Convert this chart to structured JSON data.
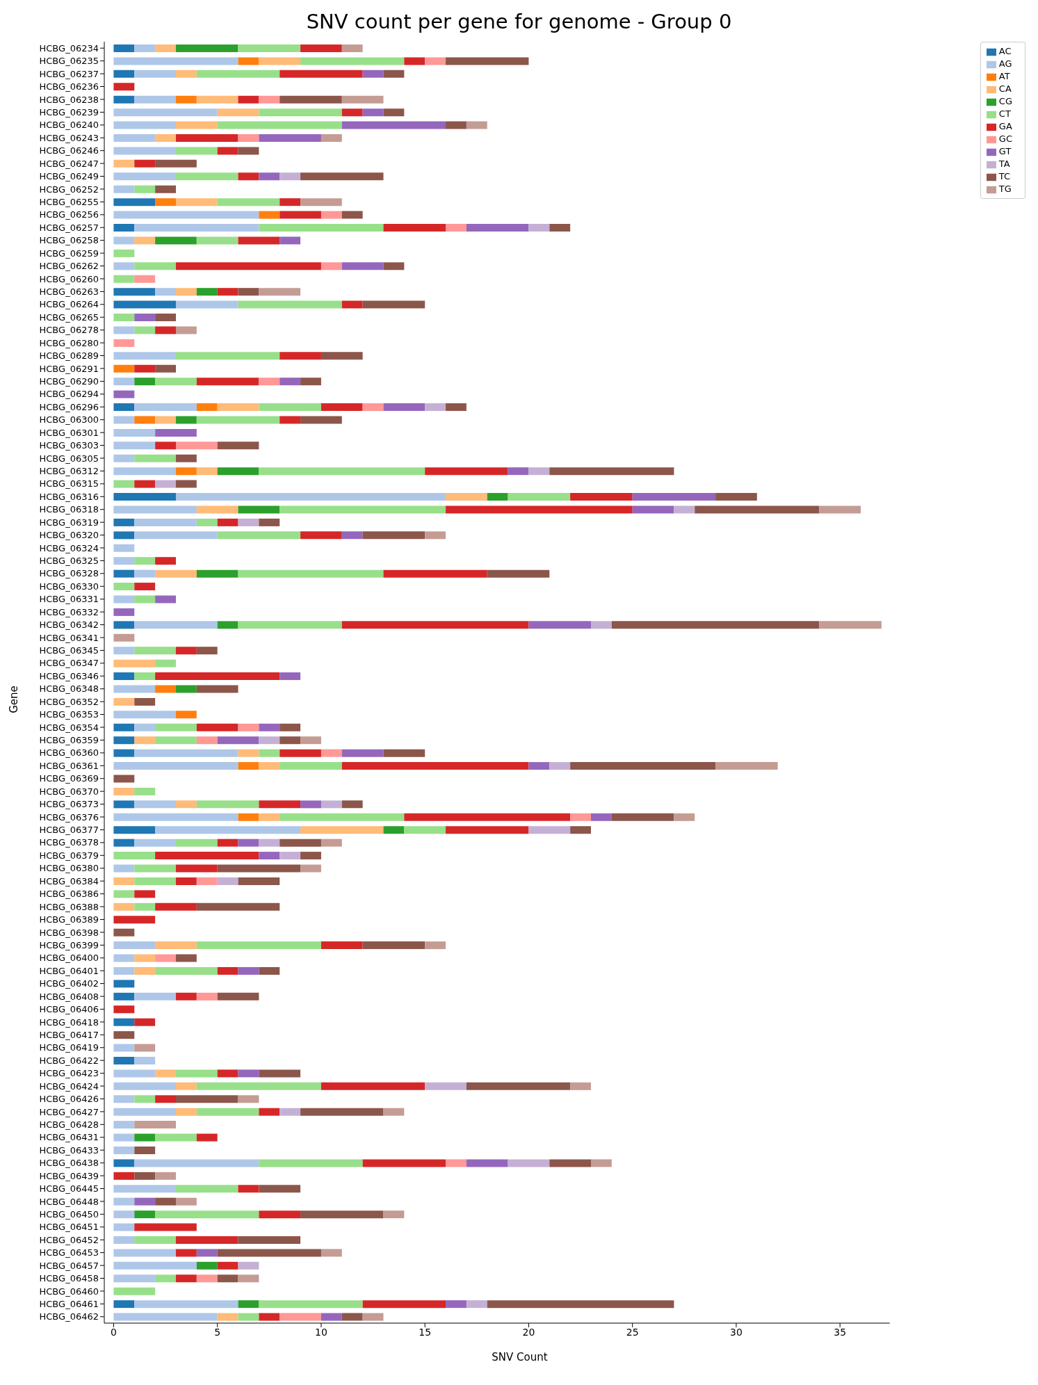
{
  "chart_data": {
    "type": "bar",
    "orientation": "horizontal",
    "stacked": true,
    "title": "SNV count per gene for genome - Group 0",
    "xlabel": "SNV Count",
    "ylabel": "Gene",
    "legend": "top right",
    "grid": false,
    "xlim": [
      -0.45,
      37.4
    ],
    "xticks": [
      0,
      5,
      10,
      15,
      20,
      25,
      30,
      35
    ],
    "categories": [
      "HCBG_06234",
      "HCBG_06235",
      "HCBG_06237",
      "HCBG_06236",
      "HCBG_06238",
      "HCBG_06239",
      "HCBG_06240",
      "HCBG_06243",
      "HCBG_06246",
      "HCBG_06247",
      "HCBG_06249",
      "HCBG_06252",
      "HCBG_06255",
      "HCBG_06256",
      "HCBG_06257",
      "HCBG_06258",
      "HCBG_06259",
      "HCBG_06262",
      "HCBG_06260",
      "HCBG_06263",
      "HCBG_06264",
      "HCBG_06265",
      "HCBG_06278",
      "HCBG_06280",
      "HCBG_06289",
      "HCBG_06291",
      "HCBG_06290",
      "HCBG_06294",
      "HCBG_06296",
      "HCBG_06300",
      "HCBG_06301",
      "HCBG_06303",
      "HCBG_06305",
      "HCBG_06312",
      "HCBG_06315",
      "HCBG_06316",
      "HCBG_06318",
      "HCBG_06319",
      "HCBG_06320",
      "HCBG_06324",
      "HCBG_06325",
      "HCBG_06328",
      "HCBG_06330",
      "HCBG_06331",
      "HCBG_06332",
      "HCBG_06342",
      "HCBG_06341",
      "HCBG_06345",
      "HCBG_06347",
      "HCBG_06346",
      "HCBG_06348",
      "HCBG_06352",
      "HCBG_06353",
      "HCBG_06354",
      "HCBG_06359",
      "HCBG_06360",
      "HCBG_06361",
      "HCBG_06369",
      "HCBG_06370",
      "HCBG_06373",
      "HCBG_06376",
      "HCBG_06377",
      "HCBG_06378",
      "HCBG_06379",
      "HCBG_06380",
      "HCBG_06384",
      "HCBG_06386",
      "HCBG_06388",
      "HCBG_06389",
      "HCBG_06398",
      "HCBG_06399",
      "HCBG_06400",
      "HCBG_06401",
      "HCBG_06402",
      "HCBG_06408",
      "HCBG_06406",
      "HCBG_06418",
      "HCBG_06417",
      "HCBG_06419",
      "HCBG_06422",
      "HCBG_06423",
      "HCBG_06424",
      "HCBG_06426",
      "HCBG_06427",
      "HCBG_06428",
      "HCBG_06431",
      "HCBG_06433",
      "HCBG_06438",
      "HCBG_06439",
      "HCBG_06445",
      "HCBG_06448",
      "HCBG_06450",
      "HCBG_06451",
      "HCBG_06452",
      "HCBG_06453",
      "HCBG_06457",
      "HCBG_06458",
      "HCBG_06460",
      "HCBG_06461",
      "HCBG_06462"
    ],
    "series": [
      {
        "name": "AC",
        "color": "#1f77b4",
        "values": [
          1,
          0,
          1,
          0,
          1,
          0,
          0,
          0,
          0,
          0,
          0,
          0,
          2,
          0,
          1,
          0,
          0,
          0,
          0,
          2,
          3,
          0,
          0,
          0,
          0,
          0,
          0,
          0,
          1,
          0,
          0,
          0,
          0,
          0,
          0,
          3,
          0,
          1,
          1,
          0,
          0,
          1,
          0,
          0,
          0,
          1,
          0,
          0,
          0,
          1,
          0,
          0,
          0,
          1,
          1,
          1,
          0,
          0,
          0,
          1,
          0,
          2,
          1,
          0,
          0,
          0,
          0,
          0,
          0,
          0,
          0,
          0,
          0,
          1,
          1,
          0,
          1,
          0,
          0,
          1,
          0,
          0,
          0,
          0,
          0,
          0,
          0,
          1,
          0,
          0,
          0,
          0,
          0,
          0,
          0,
          0,
          0,
          0,
          1,
          0
        ]
      },
      {
        "name": "AG",
        "color": "#aec7e8",
        "values": [
          1,
          6,
          2,
          0,
          2,
          5,
          3,
          2,
          3,
          0,
          3,
          1,
          0,
          7,
          6,
          1,
          0,
          1,
          0,
          1,
          3,
          0,
          1,
          0,
          3,
          0,
          1,
          0,
          3,
          1,
          2,
          2,
          1,
          3,
          0,
          13,
          4,
          3,
          4,
          1,
          1,
          1,
          0,
          1,
          0,
          4,
          0,
          1,
          0,
          0,
          2,
          0,
          3,
          1,
          0,
          5,
          6,
          0,
          0,
          2,
          6,
          7,
          2,
          0,
          1,
          0,
          0,
          0,
          0,
          0,
          2,
          1,
          1,
          0,
          2,
          0,
          0,
          0,
          1,
          1,
          2,
          3,
          1,
          3,
          1,
          1,
          1,
          6,
          0,
          3,
          1,
          1,
          1,
          1,
          3,
          4,
          2,
          0,
          5,
          5
        ]
      },
      {
        "name": "AT",
        "color": "#ff7f0e",
        "values": [
          0,
          1,
          0,
          0,
          1,
          0,
          0,
          0,
          0,
          0,
          0,
          0,
          1,
          1,
          0,
          0,
          0,
          0,
          0,
          0,
          0,
          0,
          0,
          0,
          0,
          1,
          0,
          0,
          1,
          1,
          0,
          0,
          0,
          1,
          0,
          0,
          0,
          0,
          0,
          0,
          0,
          0,
          0,
          0,
          0,
          0,
          0,
          0,
          0,
          0,
          1,
          0,
          1,
          0,
          0,
          0,
          1,
          0,
          0,
          0,
          1,
          0,
          0,
          0,
          0,
          0,
          0,
          0,
          0,
          0,
          0,
          0,
          0,
          0,
          0,
          0,
          0,
          0,
          0,
          0,
          0,
          0,
          0,
          0,
          0,
          0,
          0,
          0,
          0,
          0,
          0,
          0,
          0,
          0,
          0,
          0,
          0,
          0,
          0,
          0
        ]
      },
      {
        "name": "CA",
        "color": "#ffbb78",
        "values": [
          1,
          2,
          1,
          0,
          2,
          2,
          2,
          1,
          0,
          1,
          0,
          0,
          2,
          0,
          0,
          1,
          0,
          0,
          0,
          1,
          0,
          0,
          0,
          0,
          0,
          0,
          0,
          0,
          2,
          1,
          0,
          0,
          0,
          1,
          0,
          2,
          2,
          0,
          0,
          0,
          0,
          2,
          0,
          0,
          0,
          0,
          0,
          0,
          2,
          0,
          0,
          1,
          0,
          0,
          1,
          1,
          1,
          0,
          1,
          1,
          1,
          4,
          0,
          0,
          0,
          1,
          0,
          1,
          0,
          0,
          2,
          1,
          1,
          0,
          0,
          0,
          0,
          0,
          0,
          0,
          1,
          1,
          0,
          1,
          0,
          0,
          0,
          0,
          0,
          0,
          0,
          0,
          0,
          0,
          0,
          0,
          0,
          0,
          0,
          1
        ]
      },
      {
        "name": "CG",
        "color": "#2ca02c",
        "values": [
          3,
          0,
          0,
          0,
          0,
          0,
          0,
          0,
          0,
          0,
          0,
          0,
          0,
          0,
          0,
          2,
          0,
          0,
          0,
          1,
          0,
          0,
          0,
          0,
          0,
          0,
          1,
          0,
          0,
          1,
          0,
          0,
          0,
          2,
          0,
          1,
          2,
          0,
          0,
          0,
          0,
          2,
          0,
          0,
          0,
          1,
          0,
          0,
          0,
          0,
          1,
          0,
          0,
          0,
          0,
          0,
          0,
          0,
          0,
          0,
          0,
          1,
          0,
          0,
          0,
          0,
          0,
          0,
          0,
          0,
          0,
          0,
          0,
          0,
          0,
          0,
          0,
          0,
          0,
          0,
          0,
          0,
          0,
          0,
          0,
          1,
          0,
          0,
          0,
          0,
          0,
          1,
          0,
          0,
          0,
          1,
          0,
          0,
          1,
          0
        ]
      },
      {
        "name": "CT",
        "color": "#98df8a",
        "values": [
          3,
          5,
          4,
          0,
          0,
          4,
          6,
          0,
          2,
          0,
          3,
          1,
          3,
          0,
          6,
          2,
          1,
          2,
          1,
          0,
          5,
          1,
          1,
          0,
          5,
          0,
          2,
          0,
          3,
          4,
          0,
          0,
          2,
          8,
          1,
          3,
          8,
          1,
          4,
          0,
          1,
          7,
          1,
          1,
          0,
          5,
          0,
          2,
          1,
          1,
          0,
          0,
          0,
          2,
          2,
          1,
          3,
          0,
          1,
          3,
          6,
          2,
          2,
          2,
          2,
          2,
          1,
          1,
          0,
          0,
          6,
          0,
          3,
          0,
          0,
          0,
          0,
          0,
          0,
          0,
          2,
          6,
          1,
          3,
          0,
          2,
          0,
          5,
          0,
          3,
          0,
          5,
          0,
          2,
          0,
          0,
          1,
          2,
          5,
          1
        ]
      },
      {
        "name": "GA",
        "color": "#d62728",
        "values": [
          2,
          1,
          4,
          1,
          1,
          1,
          0,
          3,
          1,
          1,
          1,
          0,
          1,
          2,
          3,
          2,
          0,
          7,
          0,
          1,
          1,
          0,
          1,
          0,
          2,
          1,
          3,
          0,
          2,
          1,
          0,
          1,
          0,
          4,
          1,
          3,
          9,
          1,
          2,
          0,
          1,
          5,
          1,
          0,
          0,
          9,
          0,
          1,
          0,
          6,
          0,
          0,
          0,
          2,
          0,
          2,
          9,
          0,
          0,
          2,
          8,
          4,
          1,
          5,
          2,
          1,
          1,
          2,
          2,
          0,
          2,
          0,
          1,
          0,
          1,
          1,
          1,
          0,
          0,
          0,
          1,
          5,
          1,
          1,
          0,
          1,
          0,
          4,
          1,
          1,
          0,
          2,
          3,
          3,
          1,
          1,
          1,
          0,
          4,
          1
        ]
      },
      {
        "name": "GC",
        "color": "#ff9896",
        "values": [
          0,
          1,
          0,
          0,
          1,
          0,
          0,
          1,
          0,
          0,
          0,
          0,
          0,
          1,
          1,
          0,
          0,
          1,
          1,
          0,
          0,
          0,
          0,
          1,
          0,
          0,
          1,
          0,
          1,
          0,
          0,
          2,
          0,
          0,
          0,
          0,
          0,
          0,
          0,
          0,
          0,
          0,
          0,
          0,
          0,
          0,
          0,
          0,
          0,
          0,
          0,
          0,
          0,
          1,
          1,
          1,
          0,
          0,
          0,
          0,
          1,
          0,
          0,
          0,
          0,
          1,
          0,
          0,
          0,
          0,
          0,
          1,
          0,
          0,
          1,
          0,
          0,
          0,
          0,
          0,
          0,
          0,
          0,
          0,
          0,
          0,
          0,
          1,
          0,
          0,
          0,
          0,
          0,
          0,
          0,
          0,
          1,
          0,
          0,
          2
        ]
      },
      {
        "name": "GT",
        "color": "#9467bd",
        "values": [
          0,
          0,
          1,
          0,
          0,
          1,
          5,
          3,
          0,
          0,
          1,
          0,
          0,
          0,
          3,
          1,
          0,
          2,
          0,
          0,
          0,
          1,
          0,
          0,
          0,
          0,
          1,
          1,
          2,
          0,
          2,
          0,
          0,
          1,
          0,
          4,
          2,
          0,
          1,
          0,
          0,
          0,
          0,
          1,
          1,
          3,
          0,
          0,
          0,
          1,
          0,
          0,
          0,
          1,
          2,
          2,
          1,
          0,
          0,
          1,
          1,
          0,
          1,
          1,
          0,
          0,
          0,
          0,
          0,
          0,
          0,
          0,
          1,
          0,
          0,
          0,
          0,
          0,
          0,
          0,
          1,
          0,
          0,
          0,
          0,
          0,
          0,
          2,
          0,
          0,
          1,
          0,
          0,
          0,
          1,
          0,
          0,
          0,
          1,
          1
        ]
      },
      {
        "name": "TA",
        "color": "#c5b0d5",
        "values": [
          0,
          0,
          0,
          0,
          0,
          0,
          0,
          0,
          0,
          0,
          1,
          0,
          0,
          0,
          1,
          0,
          0,
          0,
          0,
          0,
          0,
          0,
          0,
          0,
          0,
          0,
          0,
          0,
          1,
          0,
          0,
          0,
          0,
          1,
          1,
          0,
          1,
          1,
          0,
          0,
          0,
          0,
          0,
          0,
          0,
          1,
          0,
          0,
          0,
          0,
          0,
          0,
          0,
          0,
          1,
          0,
          1,
          0,
          0,
          1,
          0,
          2,
          1,
          1,
          0,
          1,
          0,
          0,
          0,
          0,
          0,
          0,
          0,
          0,
          0,
          0,
          0,
          0,
          0,
          0,
          0,
          2,
          0,
          1,
          0,
          0,
          0,
          2,
          0,
          0,
          0,
          0,
          0,
          0,
          0,
          1,
          0,
          0,
          1,
          0
        ]
      },
      {
        "name": "TC",
        "color": "#8c564b",
        "values": [
          0,
          4,
          1,
          0,
          3,
          1,
          1,
          0,
          1,
          2,
          4,
          1,
          0,
          1,
          1,
          0,
          0,
          1,
          0,
          1,
          3,
          1,
          0,
          0,
          2,
          1,
          1,
          0,
          1,
          2,
          0,
          2,
          1,
          6,
          1,
          2,
          6,
          1,
          3,
          0,
          0,
          3,
          0,
          0,
          0,
          10,
          0,
          1,
          0,
          0,
          2,
          1,
          0,
          1,
          1,
          2,
          7,
          1,
          0,
          1,
          3,
          1,
          2,
          1,
          4,
          2,
          0,
          4,
          0,
          1,
          3,
          1,
          1,
          0,
          2,
          0,
          0,
          1,
          0,
          0,
          2,
          5,
          3,
          4,
          0,
          0,
          1,
          2,
          1,
          2,
          1,
          4,
          0,
          3,
          5,
          0,
          1,
          0,
          9,
          1
        ]
      },
      {
        "name": "TG",
        "color": "#c49c94",
        "values": [
          1,
          0,
          0,
          0,
          2,
          0,
          1,
          1,
          0,
          0,
          0,
          0,
          2,
          0,
          0,
          0,
          0,
          0,
          0,
          2,
          0,
          0,
          1,
          0,
          0,
          0,
          0,
          0,
          0,
          0,
          0,
          0,
          0,
          0,
          0,
          0,
          2,
          0,
          1,
          0,
          0,
          0,
          0,
          0,
          0,
          3,
          1,
          0,
          0,
          0,
          0,
          0,
          0,
          0,
          1,
          0,
          3,
          0,
          0,
          0,
          1,
          0,
          1,
          0,
          1,
          0,
          0,
          0,
          0,
          0,
          1,
          0,
          0,
          0,
          0,
          0,
          0,
          0,
          1,
          0,
          0,
          1,
          1,
          1,
          2,
          0,
          0,
          1,
          1,
          0,
          1,
          1,
          0,
          0,
          1,
          0,
          1,
          0,
          0,
          1
        ]
      }
    ]
  }
}
